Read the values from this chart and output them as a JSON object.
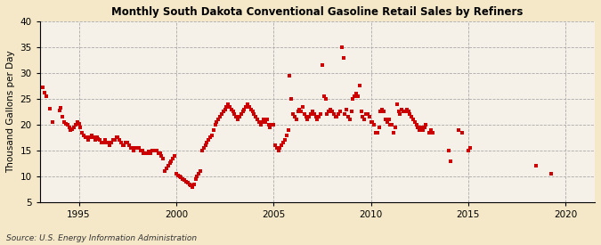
{
  "title": "Monthly South Dakota Conventional Gasoline Retail Sales by Refiners",
  "ylabel": "Thousand Gallons per Day",
  "source": "Source: U.S. Energy Information Administration",
  "ylim": [
    5,
    40
  ],
  "yticks": [
    5,
    10,
    15,
    20,
    25,
    30,
    35,
    40
  ],
  "xlim": [
    1993.0,
    2021.5
  ],
  "xticks": [
    1995,
    2000,
    2005,
    2010,
    2015,
    2020
  ],
  "background_color": "#f5e8c8",
  "plot_bg_color": "#f5f0e8",
  "marker_color": "#cc0000",
  "marker": "s",
  "marker_size": 3,
  "data": [
    [
      1993.17,
      27.2
    ],
    [
      1993.25,
      26.2
    ],
    [
      1993.33,
      25.5
    ],
    [
      1993.5,
      23.1
    ],
    [
      1993.67,
      20.5
    ],
    [
      1994.0,
      22.8
    ],
    [
      1994.08,
      23.3
    ],
    [
      1994.17,
      21.5
    ],
    [
      1994.25,
      20.5
    ],
    [
      1994.33,
      20.2
    ],
    [
      1994.42,
      20.0
    ],
    [
      1994.5,
      19.5
    ],
    [
      1994.58,
      19.0
    ],
    [
      1994.67,
      19.2
    ],
    [
      1994.75,
      19.5
    ],
    [
      1994.83,
      20.0
    ],
    [
      1994.92,
      20.5
    ],
    [
      1995.0,
      20.2
    ],
    [
      1995.08,
      19.5
    ],
    [
      1995.17,
      18.5
    ],
    [
      1995.25,
      18.0
    ],
    [
      1995.33,
      17.5
    ],
    [
      1995.42,
      17.5
    ],
    [
      1995.5,
      17.0
    ],
    [
      1995.58,
      17.5
    ],
    [
      1995.67,
      18.0
    ],
    [
      1995.75,
      17.5
    ],
    [
      1995.83,
      17.0
    ],
    [
      1995.92,
      17.5
    ],
    [
      1996.0,
      17.2
    ],
    [
      1996.08,
      17.0
    ],
    [
      1996.17,
      16.5
    ],
    [
      1996.25,
      16.5
    ],
    [
      1996.33,
      17.0
    ],
    [
      1996.42,
      16.5
    ],
    [
      1996.5,
      16.5
    ],
    [
      1996.58,
      16.0
    ],
    [
      1996.67,
      16.5
    ],
    [
      1996.75,
      17.0
    ],
    [
      1996.83,
      17.0
    ],
    [
      1996.92,
      17.5
    ],
    [
      1997.0,
      17.5
    ],
    [
      1997.08,
      17.0
    ],
    [
      1997.17,
      16.5
    ],
    [
      1997.25,
      16.0
    ],
    [
      1997.33,
      16.0
    ],
    [
      1997.42,
      16.5
    ],
    [
      1997.5,
      16.5
    ],
    [
      1997.58,
      16.0
    ],
    [
      1997.67,
      15.5
    ],
    [
      1997.75,
      15.5
    ],
    [
      1997.83,
      15.0
    ],
    [
      1997.92,
      15.5
    ],
    [
      1998.0,
      15.5
    ],
    [
      1998.08,
      15.5
    ],
    [
      1998.17,
      15.0
    ],
    [
      1998.25,
      15.0
    ],
    [
      1998.33,
      14.5
    ],
    [
      1998.42,
      14.5
    ],
    [
      1998.5,
      14.5
    ],
    [
      1998.58,
      14.8
    ],
    [
      1998.67,
      14.5
    ],
    [
      1998.75,
      15.0
    ],
    [
      1998.83,
      15.0
    ],
    [
      1998.92,
      15.0
    ],
    [
      1999.0,
      15.0
    ],
    [
      1999.08,
      14.5
    ],
    [
      1999.17,
      14.5
    ],
    [
      1999.25,
      14.0
    ],
    [
      1999.33,
      13.5
    ],
    [
      1999.42,
      11.0
    ],
    [
      1999.5,
      11.5
    ],
    [
      1999.58,
      12.0
    ],
    [
      1999.67,
      12.5
    ],
    [
      1999.75,
      13.0
    ],
    [
      1999.83,
      13.5
    ],
    [
      1999.92,
      14.0
    ],
    [
      2000.0,
      10.5
    ],
    [
      2000.08,
      10.2
    ],
    [
      2000.17,
      10.0
    ],
    [
      2000.25,
      9.8
    ],
    [
      2000.33,
      9.5
    ],
    [
      2000.42,
      9.3
    ],
    [
      2000.5,
      9.0
    ],
    [
      2000.58,
      8.8
    ],
    [
      2000.67,
      8.5
    ],
    [
      2000.75,
      8.3
    ],
    [
      2000.83,
      8.0
    ],
    [
      2000.92,
      8.5
    ],
    [
      2001.0,
      9.5
    ],
    [
      2001.08,
      10.0
    ],
    [
      2001.17,
      10.5
    ],
    [
      2001.25,
      11.0
    ],
    [
      2001.33,
      15.0
    ],
    [
      2001.42,
      15.5
    ],
    [
      2001.5,
      16.0
    ],
    [
      2001.58,
      16.5
    ],
    [
      2001.67,
      17.0
    ],
    [
      2001.75,
      17.5
    ],
    [
      2001.83,
      18.0
    ],
    [
      2001.92,
      19.0
    ],
    [
      2002.0,
      20.0
    ],
    [
      2002.08,
      20.5
    ],
    [
      2002.17,
      21.0
    ],
    [
      2002.25,
      21.5
    ],
    [
      2002.33,
      22.0
    ],
    [
      2002.42,
      22.5
    ],
    [
      2002.5,
      23.0
    ],
    [
      2002.58,
      23.5
    ],
    [
      2002.67,
      24.0
    ],
    [
      2002.75,
      23.5
    ],
    [
      2002.83,
      23.0
    ],
    [
      2002.92,
      22.5
    ],
    [
      2003.0,
      22.0
    ],
    [
      2003.08,
      21.5
    ],
    [
      2003.17,
      21.0
    ],
    [
      2003.25,
      21.5
    ],
    [
      2003.33,
      22.0
    ],
    [
      2003.42,
      22.5
    ],
    [
      2003.5,
      23.0
    ],
    [
      2003.58,
      23.5
    ],
    [
      2003.67,
      24.0
    ],
    [
      2003.75,
      23.5
    ],
    [
      2003.83,
      23.0
    ],
    [
      2003.92,
      22.5
    ],
    [
      2004.0,
      22.0
    ],
    [
      2004.08,
      21.5
    ],
    [
      2004.17,
      21.0
    ],
    [
      2004.25,
      20.5
    ],
    [
      2004.33,
      20.0
    ],
    [
      2004.42,
      20.5
    ],
    [
      2004.5,
      21.0
    ],
    [
      2004.58,
      20.5
    ],
    [
      2004.67,
      21.0
    ],
    [
      2004.75,
      20.0
    ],
    [
      2004.83,
      19.5
    ],
    [
      2004.92,
      20.0
    ],
    [
      2005.0,
      20.0
    ],
    [
      2005.08,
      16.0
    ],
    [
      2005.17,
      15.5
    ],
    [
      2005.25,
      15.0
    ],
    [
      2005.33,
      15.5
    ],
    [
      2005.42,
      16.0
    ],
    [
      2005.5,
      16.5
    ],
    [
      2005.58,
      17.0
    ],
    [
      2005.67,
      18.0
    ],
    [
      2005.75,
      19.0
    ],
    [
      2005.83,
      29.5
    ],
    [
      2005.92,
      25.0
    ],
    [
      2006.0,
      22.0
    ],
    [
      2006.08,
      21.5
    ],
    [
      2006.17,
      21.0
    ],
    [
      2006.25,
      22.5
    ],
    [
      2006.33,
      23.0
    ],
    [
      2006.42,
      22.5
    ],
    [
      2006.5,
      23.5
    ],
    [
      2006.58,
      22.0
    ],
    [
      2006.67,
      21.5
    ],
    [
      2006.75,
      21.0
    ],
    [
      2006.83,
      21.5
    ],
    [
      2006.92,
      22.0
    ],
    [
      2007.0,
      22.5
    ],
    [
      2007.08,
      22.0
    ],
    [
      2007.17,
      21.5
    ],
    [
      2007.25,
      21.0
    ],
    [
      2007.33,
      21.5
    ],
    [
      2007.42,
      22.0
    ],
    [
      2007.5,
      31.5
    ],
    [
      2007.58,
      25.5
    ],
    [
      2007.67,
      25.0
    ],
    [
      2007.75,
      22.0
    ],
    [
      2007.83,
      22.5
    ],
    [
      2007.92,
      23.0
    ],
    [
      2008.0,
      22.5
    ],
    [
      2008.08,
      22.0
    ],
    [
      2008.17,
      21.5
    ],
    [
      2008.25,
      21.5
    ],
    [
      2008.33,
      22.0
    ],
    [
      2008.42,
      22.5
    ],
    [
      2008.5,
      35.0
    ],
    [
      2008.58,
      33.0
    ],
    [
      2008.67,
      22.0
    ],
    [
      2008.75,
      23.0
    ],
    [
      2008.83,
      21.5
    ],
    [
      2008.92,
      21.0
    ],
    [
      2009.0,
      22.5
    ],
    [
      2009.08,
      25.0
    ],
    [
      2009.17,
      25.5
    ],
    [
      2009.25,
      26.0
    ],
    [
      2009.33,
      25.5
    ],
    [
      2009.42,
      27.5
    ],
    [
      2009.5,
      22.5
    ],
    [
      2009.58,
      21.5
    ],
    [
      2009.67,
      21.0
    ],
    [
      2009.75,
      22.0
    ],
    [
      2009.83,
      22.0
    ],
    [
      2009.92,
      21.5
    ],
    [
      2010.0,
      20.5
    ],
    [
      2010.08,
      20.5
    ],
    [
      2010.17,
      20.0
    ],
    [
      2010.25,
      18.5
    ],
    [
      2010.33,
      18.5
    ],
    [
      2010.42,
      19.5
    ],
    [
      2010.5,
      22.5
    ],
    [
      2010.58,
      23.0
    ],
    [
      2010.67,
      22.5
    ],
    [
      2010.75,
      21.0
    ],
    [
      2010.83,
      20.5
    ],
    [
      2010.92,
      21.0
    ],
    [
      2011.0,
      20.0
    ],
    [
      2011.08,
      20.0
    ],
    [
      2011.17,
      18.5
    ],
    [
      2011.25,
      19.5
    ],
    [
      2011.33,
      24.0
    ],
    [
      2011.42,
      22.5
    ],
    [
      2011.5,
      22.0
    ],
    [
      2011.58,
      23.0
    ],
    [
      2011.67,
      22.5
    ],
    [
      2011.75,
      22.5
    ],
    [
      2011.83,
      23.0
    ],
    [
      2011.92,
      22.5
    ],
    [
      2012.0,
      22.0
    ],
    [
      2012.08,
      21.5
    ],
    [
      2012.17,
      21.0
    ],
    [
      2012.25,
      20.5
    ],
    [
      2012.33,
      20.0
    ],
    [
      2012.42,
      19.5
    ],
    [
      2012.5,
      19.0
    ],
    [
      2012.58,
      19.5
    ],
    [
      2012.67,
      19.0
    ],
    [
      2012.75,
      19.5
    ],
    [
      2012.83,
      20.0
    ],
    [
      2013.0,
      18.5
    ],
    [
      2013.08,
      19.0
    ],
    [
      2013.17,
      18.5
    ],
    [
      2014.0,
      15.0
    ],
    [
      2014.08,
      13.0
    ],
    [
      2014.5,
      19.0
    ],
    [
      2014.67,
      18.5
    ],
    [
      2015.0,
      15.0
    ],
    [
      2015.08,
      15.5
    ],
    [
      2018.5,
      12.0
    ],
    [
      2019.25,
      10.5
    ]
  ]
}
